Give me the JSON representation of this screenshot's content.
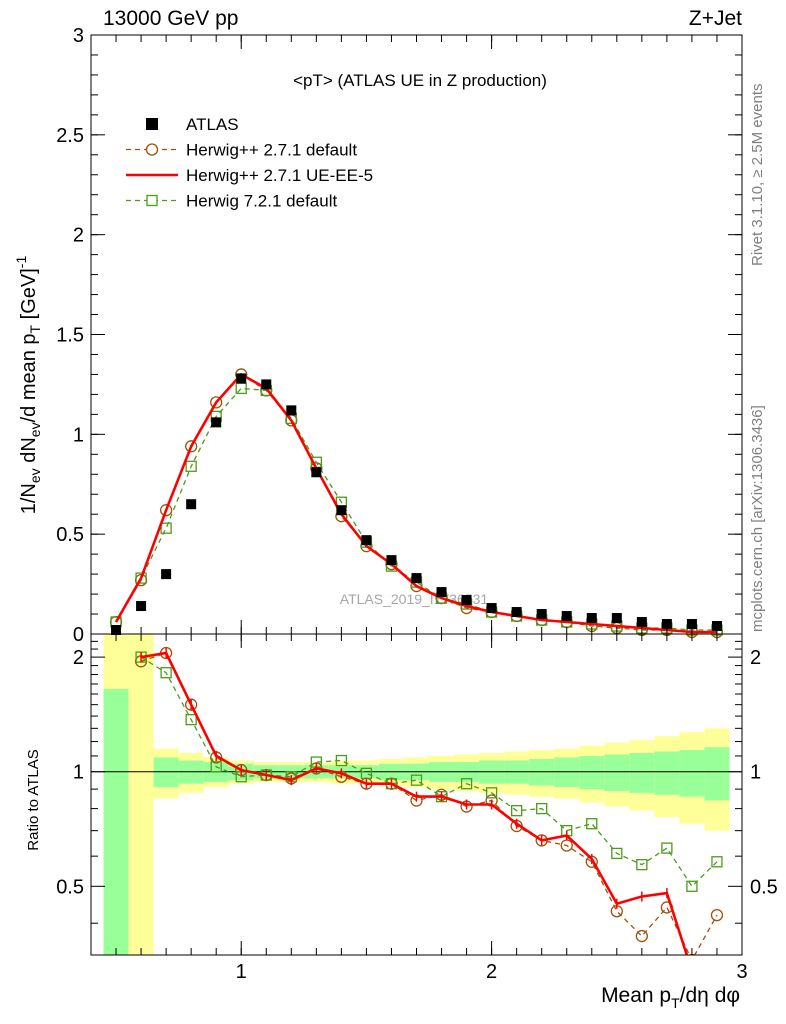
{
  "header": {
    "left": "13000 GeV pp",
    "right": "Z+Jet"
  },
  "plot_title": "<pT> (ATLAS UE in Z production)",
  "side_text_top": "Rivet 3.1.10, ≥ 2.5M events",
  "side_text_bottom": "mcplots.cern.ch [arXiv:1306.3436]",
  "watermark": "ATLAS_2019_I1736531",
  "legend": [
    {
      "label": "ATLAS",
      "style": "data-square",
      "color": "#000000"
    },
    {
      "label": "Herwig++ 2.7.1 default",
      "style": "dashed-circle",
      "color": "#a0520a"
    },
    {
      "label": "Herwig++ 2.7.1 UE-EE-5",
      "style": "solid-line",
      "color": "#ff0000"
    },
    {
      "label": "Herwig 7.2.1 default",
      "style": "dashed-square",
      "color": "#4c9b1a"
    }
  ],
  "chart_data": {
    "type": "line",
    "main": {
      "ylabel": "1/N_ev dN_ev/d mean p_T [GeV]^-1",
      "ylim": [
        0,
        3
      ],
      "yticks": [
        0,
        0.5,
        1,
        1.5,
        2,
        2.5,
        3
      ],
      "ytick_labels": [
        "0",
        "0.5",
        "1",
        "1.5",
        "2",
        "2.5",
        "3"
      ]
    },
    "ratio": {
      "ylabel": "Ratio to ATLAS",
      "ylim": [
        0.33,
        2.3
      ],
      "yticks": [
        0.5,
        1,
        2
      ],
      "ytick_labels": [
        "0.5",
        "1",
        "2"
      ]
    },
    "xlabel": "Mean p_T/dη dφ",
    "xlim": [
      0.4,
      3.0
    ],
    "xticks": [
      1,
      2,
      3
    ],
    "xtick_labels": [
      "1",
      "2",
      "3"
    ],
    "x": [
      0.5,
      0.6,
      0.7,
      0.8,
      0.9,
      1.0,
      1.1,
      1.2,
      1.3,
      1.4,
      1.5,
      1.6,
      1.7,
      1.8,
      1.9,
      2.0,
      2.1,
      2.2,
      2.3,
      2.4,
      2.5,
      2.6,
      2.7,
      2.8,
      2.9
    ],
    "series": [
      {
        "name": "ATLAS",
        "color": "#000000",
        "values": [
          0.02,
          0.14,
          0.3,
          0.65,
          1.06,
          1.28,
          1.25,
          1.12,
          0.81,
          0.62,
          0.47,
          0.37,
          0.28,
          0.21,
          0.17,
          0.13,
          0.11,
          0.1,
          0.09,
          0.08,
          0.08,
          0.06,
          0.05,
          0.05,
          0.04
        ]
      },
      {
        "name": "Herwig++ 2.7.1 default",
        "color": "#a0520a",
        "values": [
          0.06,
          0.27,
          0.62,
          0.94,
          1.16,
          1.3,
          1.22,
          1.07,
          0.83,
          0.59,
          0.44,
          0.35,
          0.24,
          0.18,
          0.13,
          0.11,
          0.09,
          0.07,
          0.06,
          0.04,
          0.03,
          0.02,
          0.02,
          0.01,
          0.01
        ],
        "ratio": [
          null,
          1.95,
          2.05,
          1.5,
          1.09,
          1.01,
          0.98,
          0.96,
          1.02,
          0.97,
          0.93,
          0.93,
          0.84,
          0.87,
          0.81,
          0.84,
          0.72,
          0.66,
          0.64,
          0.58,
          0.43,
          0.37,
          0.44,
          0.32,
          0.42
        ]
      },
      {
        "name": "Herwig++ 2.7.1 UE-EE-5",
        "color": "#ff0000",
        "values": [
          0.06,
          0.28,
          0.62,
          0.94,
          1.16,
          1.3,
          1.23,
          1.07,
          0.83,
          0.6,
          0.44,
          0.35,
          0.24,
          0.18,
          0.14,
          0.11,
          0.09,
          0.07,
          0.06,
          0.05,
          0.04,
          0.03,
          0.02,
          0.01,
          0.01
        ],
        "ratio": [
          null,
          2.0,
          2.05,
          1.5,
          1.1,
          1.01,
          0.98,
          0.95,
          1.02,
          0.99,
          0.93,
          0.93,
          0.86,
          0.86,
          0.82,
          0.82,
          0.73,
          0.66,
          0.68,
          0.59,
          0.45,
          0.47,
          0.48,
          0.3,
          null
        ]
      },
      {
        "name": "Herwig 7.2.1 default",
        "color": "#4c9b1a",
        "values": [
          0.06,
          0.28,
          0.53,
          0.84,
          1.09,
          1.23,
          1.22,
          1.08,
          0.86,
          0.66,
          0.46,
          0.34,
          0.26,
          0.18,
          0.15,
          0.11,
          0.09,
          0.07,
          0.06,
          0.05,
          0.04,
          0.03,
          0.03,
          0.02,
          0.02
        ],
        "ratio": [
          null,
          2.0,
          1.82,
          1.37,
          1.03,
          0.97,
          0.98,
          0.97,
          1.06,
          1.07,
          0.99,
          0.93,
          0.95,
          0.86,
          0.93,
          0.88,
          0.79,
          0.8,
          0.7,
          0.73,
          0.61,
          0.57,
          0.63,
          0.5,
          0.58
        ]
      }
    ],
    "bands": {
      "x_edges": [
        0.45,
        0.55,
        0.65,
        0.75,
        0.85,
        0.95,
        1.05,
        1.15,
        1.25,
        1.35,
        1.45,
        1.55,
        1.65,
        1.75,
        1.85,
        1.95,
        2.05,
        2.15,
        2.25,
        2.35,
        2.45,
        2.55,
        2.65,
        2.75,
        2.85,
        2.95
      ],
      "yellow_upper": [
        2.3,
        2.3,
        1.15,
        1.12,
        1.09,
        1.07,
        1.06,
        1.06,
        1.06,
        1.07,
        1.07,
        1.08,
        1.09,
        1.1,
        1.11,
        1.12,
        1.13,
        1.14,
        1.15,
        1.17,
        1.19,
        1.21,
        1.24,
        1.27,
        1.3
      ],
      "yellow_lower": [
        0.33,
        0.33,
        0.85,
        0.88,
        0.91,
        0.93,
        0.94,
        0.94,
        0.94,
        0.93,
        0.93,
        0.92,
        0.91,
        0.9,
        0.89,
        0.88,
        0.87,
        0.86,
        0.85,
        0.83,
        0.81,
        0.79,
        0.76,
        0.73,
        0.7
      ],
      "green_upper": [
        1.65,
        0.33,
        1.09,
        1.07,
        1.06,
        1.05,
        1.04,
        1.04,
        1.04,
        1.04,
        1.04,
        1.05,
        1.05,
        1.06,
        1.06,
        1.07,
        1.07,
        1.08,
        1.09,
        1.1,
        1.11,
        1.12,
        1.13,
        1.14,
        1.16
      ],
      "green_lower": [
        0.33,
        0.33,
        0.91,
        0.93,
        0.94,
        0.95,
        0.96,
        0.96,
        0.96,
        0.96,
        0.96,
        0.95,
        0.95,
        0.94,
        0.94,
        0.93,
        0.93,
        0.92,
        0.91,
        0.9,
        0.89,
        0.88,
        0.87,
        0.86,
        0.84
      ],
      "yellow_color": "#ffff99",
      "green_color": "#99ff99"
    }
  }
}
